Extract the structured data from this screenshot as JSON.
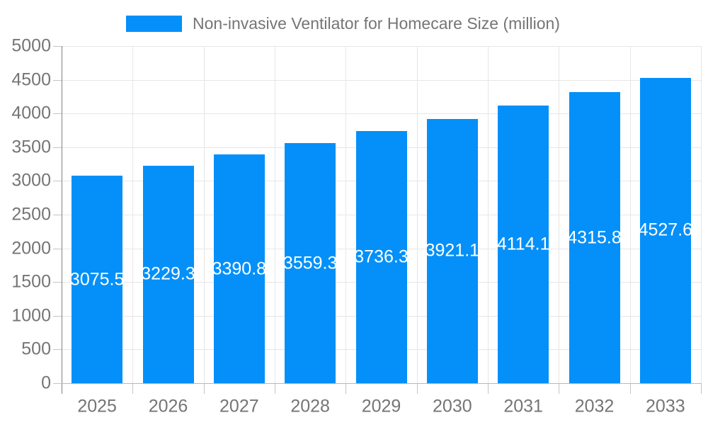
{
  "chart_data": {
    "type": "bar",
    "title": "",
    "legend": {
      "position": "top",
      "label": "Non-invasive Ventilator for Homecare Size (million)"
    },
    "categories": [
      "2025",
      "2026",
      "2027",
      "2028",
      "2029",
      "2030",
      "2031",
      "2032",
      "2033"
    ],
    "series": [
      {
        "name": "Non-invasive Ventilator for Homecare Size (million)",
        "values": [
          3075.5,
          3229.3,
          3390.8,
          3559.3,
          3736.3,
          3921.1,
          4114.1,
          4315.8,
          4527.6
        ],
        "color": "#0490f8"
      }
    ],
    "value_labels": [
      "3075.5",
      "3229.3",
      "3390.8",
      "3559.3",
      "3736.3",
      "3921.1",
      "4114.1",
      "4315.8",
      "4527.6"
    ],
    "value_label_position": "inside-center",
    "value_label_color": "#ffffff",
    "xlabel": "",
    "ylabel": "",
    "ylim": [
      0,
      5000
    ],
    "y_ticks": [
      0,
      500,
      1000,
      1500,
      2000,
      2500,
      3000,
      3500,
      4000,
      4500,
      5000
    ],
    "grid": true,
    "colors": {
      "bar": "#0490f8",
      "axis_text": "#757575",
      "gridline": "#e6e6e6",
      "y_axis_line": "#828282",
      "x_axis_line": "#b8b8b8",
      "tick_mark": "#c4c4c4",
      "background": "#ffffff"
    }
  }
}
